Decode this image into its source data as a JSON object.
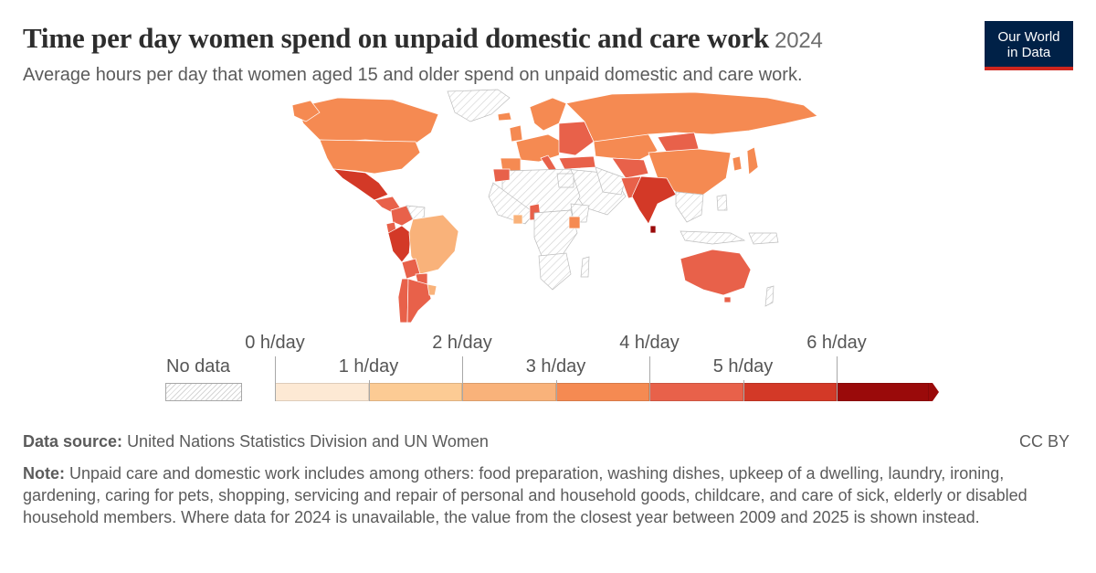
{
  "header": {
    "title": "Time per day women spend on unpaid domestic and care work",
    "year": "2024",
    "subtitle": "Average hours per day that women aged 15 and older spend on unpaid domestic and care work."
  },
  "logo": {
    "line1": "Our World",
    "line2": "in Data"
  },
  "legend": {
    "no_data": "No data",
    "ticks": [
      "0 h/day",
      "1 h/day",
      "2 h/day",
      "3 h/day",
      "4 h/day",
      "5 h/day",
      "6 h/day"
    ],
    "bins": [
      {
        "range": "0–1",
        "color": "#fde9d4"
      },
      {
        "range": "1–2",
        "color": "#fccb94"
      },
      {
        "range": "2–3",
        "color": "#f9b27a"
      },
      {
        "range": "3–4",
        "color": "#f58a52"
      },
      {
        "range": "4–5",
        "color": "#e8614a"
      },
      {
        "range": "5–6",
        "color": "#d33927"
      },
      {
        "range": "6+",
        "color": "#9a0a0a"
      }
    ]
  },
  "footer": {
    "source_label": "Data source:",
    "source": "United Nations Statistics Division and UN Women",
    "license": "CC BY",
    "note_label": "Note:",
    "note": "Unpaid care and domestic work includes among others: food preparation, washing dishes, upkeep of a dwelling, laundry, ironing, gardening, caring for pets, shopping, servicing and repair of personal and household goods, childcare, and care of sick, elderly or disabled household members. Where data for 2024 is unavailable, the value from the closest year between 2009 and 2025 is shown instead."
  }
}
